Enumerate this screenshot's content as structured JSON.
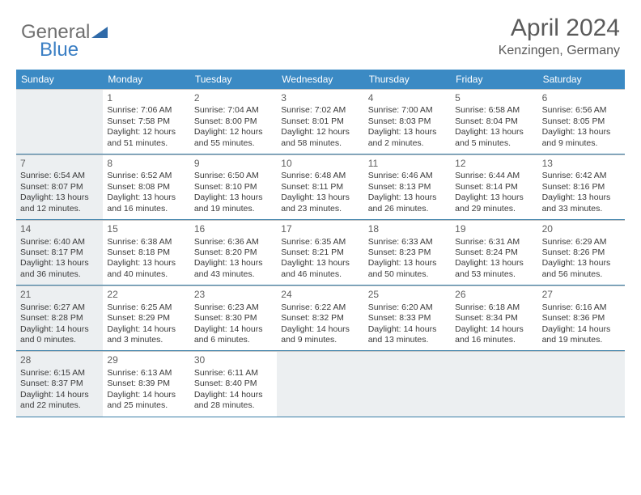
{
  "brand": {
    "part1": "General",
    "part2": "Blue"
  },
  "title": {
    "month": "April 2024",
    "location": "Kenzingen, Germany"
  },
  "colors": {
    "header_bg": "#3b8ac4",
    "header_text": "#ffffff",
    "cell_border_top": "#c9c9c9",
    "cell_border_bottom": "#3b7fa8",
    "gray_bg": "#eceff1",
    "text": "#3a3a3a",
    "title_color": "#5a5a5a"
  },
  "dow": [
    "Sunday",
    "Monday",
    "Tuesday",
    "Wednesday",
    "Thursday",
    "Friday",
    "Saturday"
  ],
  "weeks": [
    [
      {
        "date": "",
        "gray": true
      },
      {
        "date": "1",
        "sunrise": "Sunrise: 7:06 AM",
        "sunset": "Sunset: 7:58 PM",
        "day": "Daylight: 12 hours and 51 minutes."
      },
      {
        "date": "2",
        "sunrise": "Sunrise: 7:04 AM",
        "sunset": "Sunset: 8:00 PM",
        "day": "Daylight: 12 hours and 55 minutes."
      },
      {
        "date": "3",
        "sunrise": "Sunrise: 7:02 AM",
        "sunset": "Sunset: 8:01 PM",
        "day": "Daylight: 12 hours and 58 minutes."
      },
      {
        "date": "4",
        "sunrise": "Sunrise: 7:00 AM",
        "sunset": "Sunset: 8:03 PM",
        "day": "Daylight: 13 hours and 2 minutes."
      },
      {
        "date": "5",
        "sunrise": "Sunrise: 6:58 AM",
        "sunset": "Sunset: 8:04 PM",
        "day": "Daylight: 13 hours and 5 minutes."
      },
      {
        "date": "6",
        "sunrise": "Sunrise: 6:56 AM",
        "sunset": "Sunset: 8:05 PM",
        "day": "Daylight: 13 hours and 9 minutes."
      }
    ],
    [
      {
        "date": "7",
        "gray": true,
        "sunrise": "Sunrise: 6:54 AM",
        "sunset": "Sunset: 8:07 PM",
        "day": "Daylight: 13 hours and 12 minutes."
      },
      {
        "date": "8",
        "sunrise": "Sunrise: 6:52 AM",
        "sunset": "Sunset: 8:08 PM",
        "day": "Daylight: 13 hours and 16 minutes."
      },
      {
        "date": "9",
        "sunrise": "Sunrise: 6:50 AM",
        "sunset": "Sunset: 8:10 PM",
        "day": "Daylight: 13 hours and 19 minutes."
      },
      {
        "date": "10",
        "sunrise": "Sunrise: 6:48 AM",
        "sunset": "Sunset: 8:11 PM",
        "day": "Daylight: 13 hours and 23 minutes."
      },
      {
        "date": "11",
        "sunrise": "Sunrise: 6:46 AM",
        "sunset": "Sunset: 8:13 PM",
        "day": "Daylight: 13 hours and 26 minutes."
      },
      {
        "date": "12",
        "sunrise": "Sunrise: 6:44 AM",
        "sunset": "Sunset: 8:14 PM",
        "day": "Daylight: 13 hours and 29 minutes."
      },
      {
        "date": "13",
        "sunrise": "Sunrise: 6:42 AM",
        "sunset": "Sunset: 8:16 PM",
        "day": "Daylight: 13 hours and 33 minutes."
      }
    ],
    [
      {
        "date": "14",
        "gray": true,
        "sunrise": "Sunrise: 6:40 AM",
        "sunset": "Sunset: 8:17 PM",
        "day": "Daylight: 13 hours and 36 minutes."
      },
      {
        "date": "15",
        "sunrise": "Sunrise: 6:38 AM",
        "sunset": "Sunset: 8:18 PM",
        "day": "Daylight: 13 hours and 40 minutes."
      },
      {
        "date": "16",
        "sunrise": "Sunrise: 6:36 AM",
        "sunset": "Sunset: 8:20 PM",
        "day": "Daylight: 13 hours and 43 minutes."
      },
      {
        "date": "17",
        "sunrise": "Sunrise: 6:35 AM",
        "sunset": "Sunset: 8:21 PM",
        "day": "Daylight: 13 hours and 46 minutes."
      },
      {
        "date": "18",
        "sunrise": "Sunrise: 6:33 AM",
        "sunset": "Sunset: 8:23 PM",
        "day": "Daylight: 13 hours and 50 minutes."
      },
      {
        "date": "19",
        "sunrise": "Sunrise: 6:31 AM",
        "sunset": "Sunset: 8:24 PM",
        "day": "Daylight: 13 hours and 53 minutes."
      },
      {
        "date": "20",
        "sunrise": "Sunrise: 6:29 AM",
        "sunset": "Sunset: 8:26 PM",
        "day": "Daylight: 13 hours and 56 minutes."
      }
    ],
    [
      {
        "date": "21",
        "gray": true,
        "sunrise": "Sunrise: 6:27 AM",
        "sunset": "Sunset: 8:28 PM",
        "day": "Daylight: 14 hours and 0 minutes."
      },
      {
        "date": "22",
        "sunrise": "Sunrise: 6:25 AM",
        "sunset": "Sunset: 8:29 PM",
        "day": "Daylight: 14 hours and 3 minutes."
      },
      {
        "date": "23",
        "sunrise": "Sunrise: 6:23 AM",
        "sunset": "Sunset: 8:30 PM",
        "day": "Daylight: 14 hours and 6 minutes."
      },
      {
        "date": "24",
        "sunrise": "Sunrise: 6:22 AM",
        "sunset": "Sunset: 8:32 PM",
        "day": "Daylight: 14 hours and 9 minutes."
      },
      {
        "date": "25",
        "sunrise": "Sunrise: 6:20 AM",
        "sunset": "Sunset: 8:33 PM",
        "day": "Daylight: 14 hours and 13 minutes."
      },
      {
        "date": "26",
        "sunrise": "Sunrise: 6:18 AM",
        "sunset": "Sunset: 8:34 PM",
        "day": "Daylight: 14 hours and 16 minutes."
      },
      {
        "date": "27",
        "sunrise": "Sunrise: 6:16 AM",
        "sunset": "Sunset: 8:36 PM",
        "day": "Daylight: 14 hours and 19 minutes."
      }
    ],
    [
      {
        "date": "28",
        "gray": true,
        "sunrise": "Sunrise: 6:15 AM",
        "sunset": "Sunset: 8:37 PM",
        "day": "Daylight: 14 hours and 22 minutes."
      },
      {
        "date": "29",
        "sunrise": "Sunrise: 6:13 AM",
        "sunset": "Sunset: 8:39 PM",
        "day": "Daylight: 14 hours and 25 minutes."
      },
      {
        "date": "30",
        "sunrise": "Sunrise: 6:11 AM",
        "sunset": "Sunset: 8:40 PM",
        "day": "Daylight: 14 hours and 28 minutes."
      },
      {
        "date": "",
        "gray": true
      },
      {
        "date": "",
        "gray": true
      },
      {
        "date": "",
        "gray": true
      },
      {
        "date": "",
        "gray": true
      }
    ]
  ]
}
